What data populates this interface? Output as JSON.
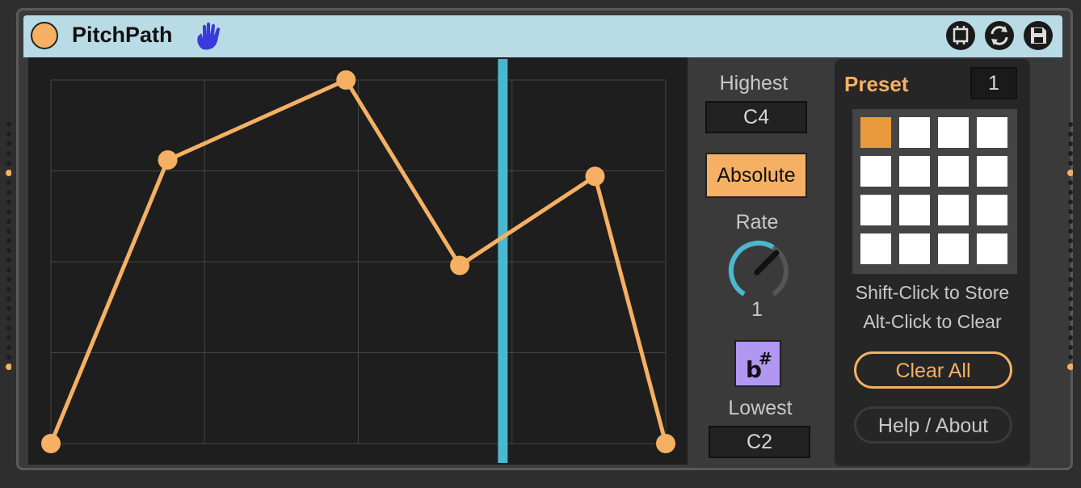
{
  "device": {
    "title": "PitchPath",
    "colors": {
      "accent": "#f5b063",
      "titlebar": "#b8dbe6",
      "playhead": "#4ab8cf",
      "flat_sharp": "#b196f2"
    }
  },
  "titlebar_icons": [
    "power-icon",
    "hand-icon",
    "freeze-icon",
    "hot-swap-icon",
    "save-icon"
  ],
  "controls": {
    "highest_label": "Highest",
    "highest_value": "C4",
    "mode_button": "Absolute",
    "rate_label": "Rate",
    "rate_value": "1",
    "accidental_symbol": "b#",
    "lowest_label": "Lowest",
    "lowest_value": "C2"
  },
  "presets": {
    "title": "Preset",
    "current": "1",
    "slots": 16,
    "active_index": 0,
    "hint_store": "Shift-Click to Store",
    "hint_clear": "Alt-Click to Clear",
    "clear_all": "Clear All",
    "help_about": "Help / About"
  },
  "path": {
    "points": [
      {
        "x": 0.0,
        "y": 0.0
      },
      {
        "x": 0.19,
        "y": 0.78
      },
      {
        "x": 0.48,
        "y": 1.0
      },
      {
        "x": 0.665,
        "y": 0.49
      },
      {
        "x": 0.885,
        "y": 0.735
      },
      {
        "x": 1.0,
        "y": 0.0
      }
    ],
    "playhead": 0.735
  }
}
